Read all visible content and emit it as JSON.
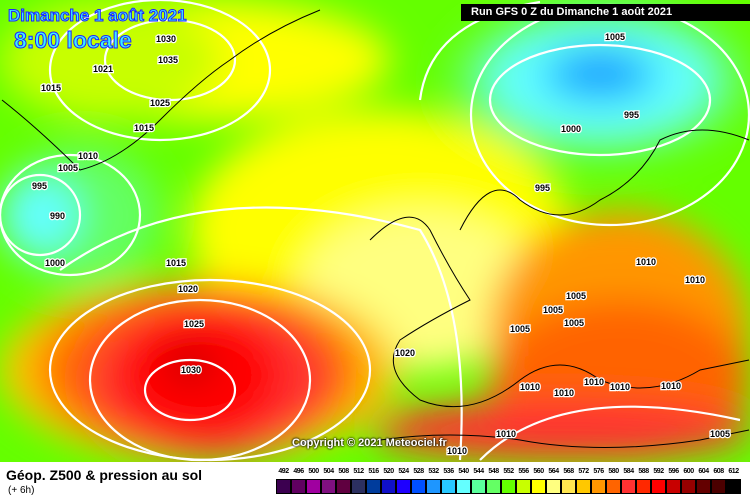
{
  "header": {
    "date": "Dimanche 1 août 2021",
    "time": "8:00 locale",
    "run": "Run GFS 0 Z du Dimanche 1 août 2021"
  },
  "copyright": "Copyright © 2021 Meteociel.fr",
  "footer": {
    "title": "Géop. Z500 & pression au sol",
    "subtitle": "(+ 6h)"
  },
  "legend": {
    "labels": [
      "492",
      "496",
      "500",
      "504",
      "508",
      "512",
      "516",
      "520",
      "524",
      "528",
      "532",
      "536",
      "540",
      "544",
      "548",
      "552",
      "556",
      "560",
      "564",
      "568",
      "572",
      "576",
      "580",
      "584",
      "588",
      "592",
      "596",
      "600",
      "604",
      "608",
      "612"
    ],
    "colors": [
      "#3c0050",
      "#600060",
      "#a000a0",
      "#801080",
      "#600040",
      "#2c3060",
      "#003c9c",
      "#1010c8",
      "#1e00ff",
      "#0050ff",
      "#1e96ff",
      "#28c8ff",
      "#64ffff",
      "#5aff9c",
      "#64ff64",
      "#64ff00",
      "#c8ff00",
      "#ffff00",
      "#ffff80",
      "#ffe650",
      "#ffc800",
      "#ff9600",
      "#ff6400",
      "#ff3232",
      "#ff2800",
      "#ff0000",
      "#c80000",
      "#960000",
      "#640000",
      "#4b0000",
      "#000000"
    ]
  },
  "isobar_labels": [
    "1030",
    "1035",
    "1021",
    "1015",
    "1025",
    "1015",
    "1010",
    "1005",
    "995",
    "990",
    "1000",
    "1015",
    "1020",
    "1025",
    "1030",
    "1005",
    "995",
    "1000",
    "995",
    "1010",
    "1010",
    "1005",
    "1005",
    "1005",
    "1005",
    "1020",
    "1010",
    "1010",
    "1010",
    "1010",
    "1010",
    "1010",
    "1010",
    "1005"
  ]
}
